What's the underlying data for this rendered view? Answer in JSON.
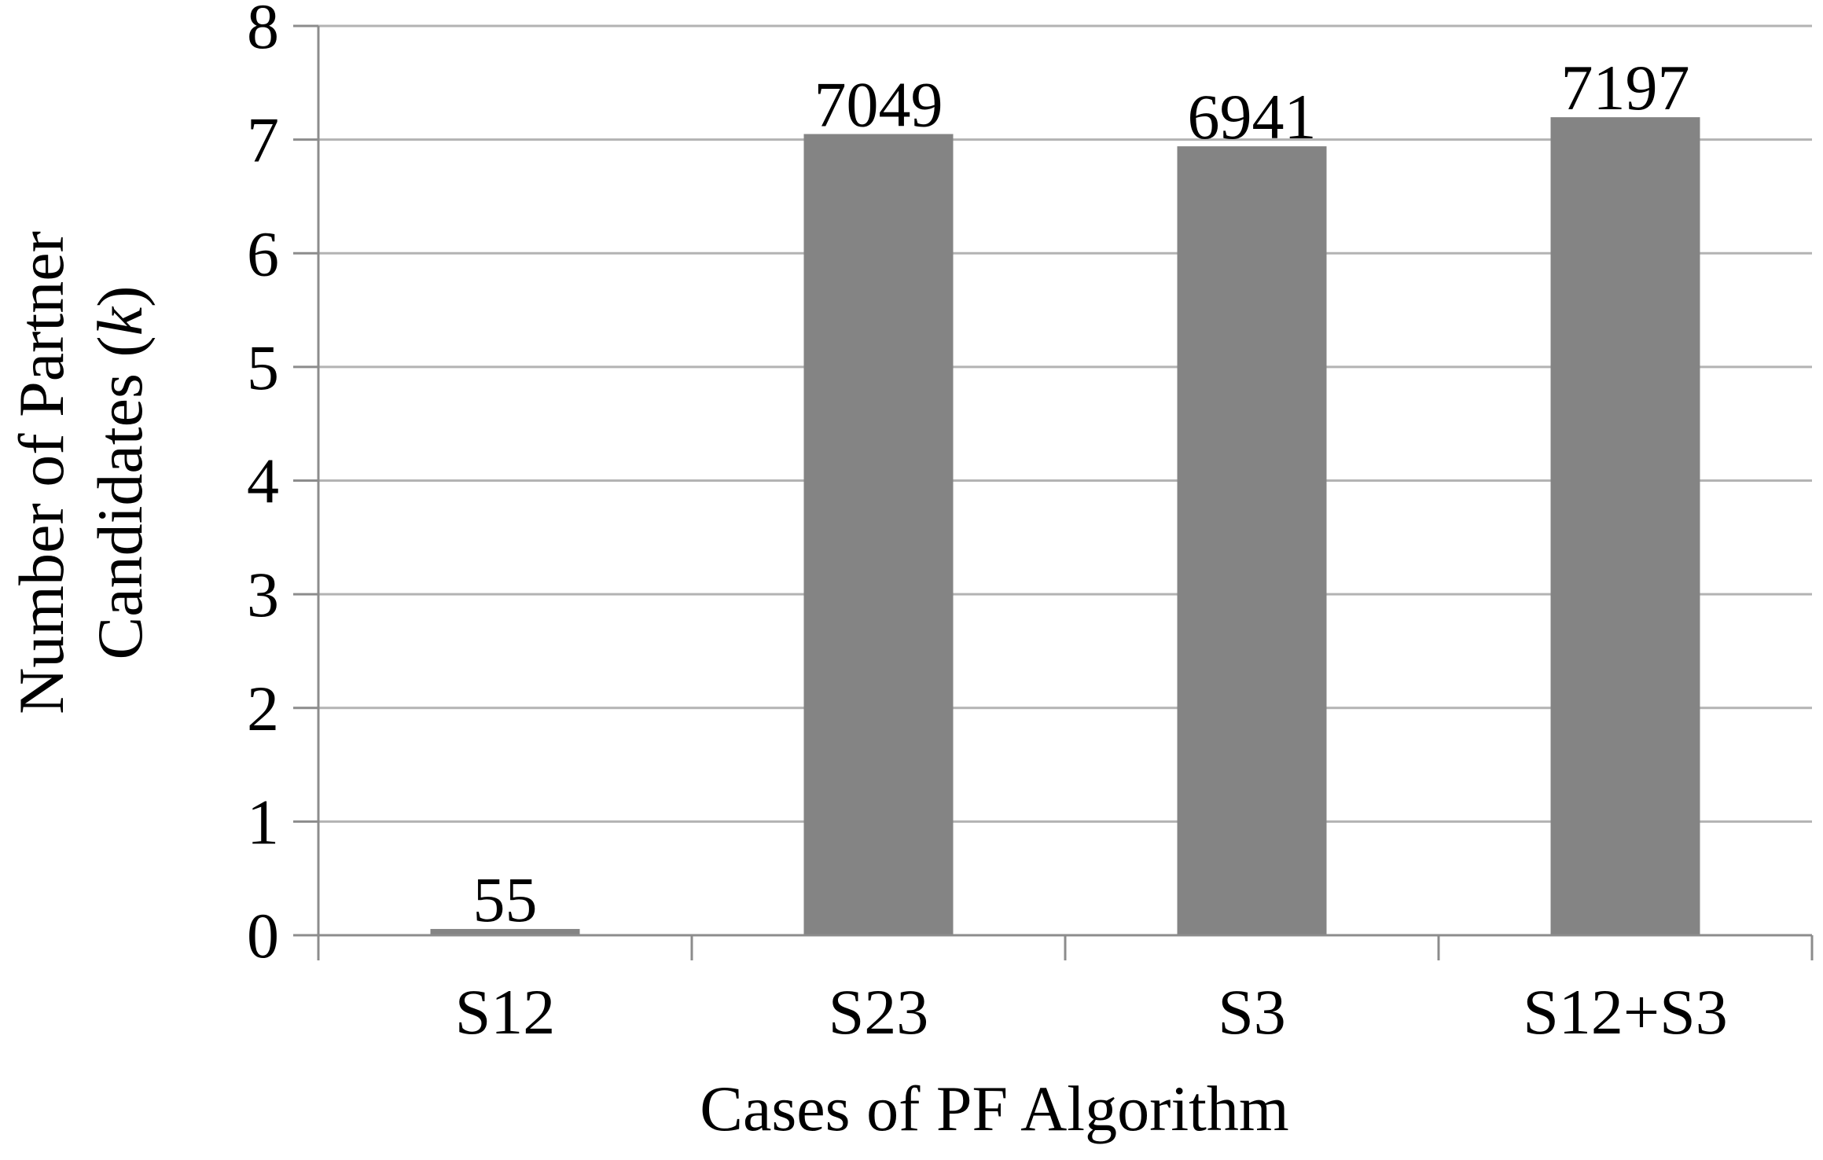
{
  "chart_data": {
    "type": "bar",
    "categories": [
      "S12",
      "S23",
      "S3",
      "S12+S3"
    ],
    "values": [
      0.055,
      7.049,
      6.941,
      7.197
    ],
    "data_labels": [
      "55",
      "7049",
      "6941",
      "7197"
    ],
    "title": "",
    "xlabel": "Cases of PF Algorithm",
    "ylabel_line1": "Number of Partner",
    "ylabel_line2_prefix": "Candidates (",
    "ylabel_line2_italic": "k",
    "ylabel_line2_suffix": ")",
    "ylim": [
      0,
      8
    ],
    "yticks": [
      "0",
      "1",
      "2",
      "3",
      "4",
      "5",
      "6",
      "7",
      "8"
    ],
    "grid": true,
    "legend": "none",
    "bar_color": "#848484"
  }
}
